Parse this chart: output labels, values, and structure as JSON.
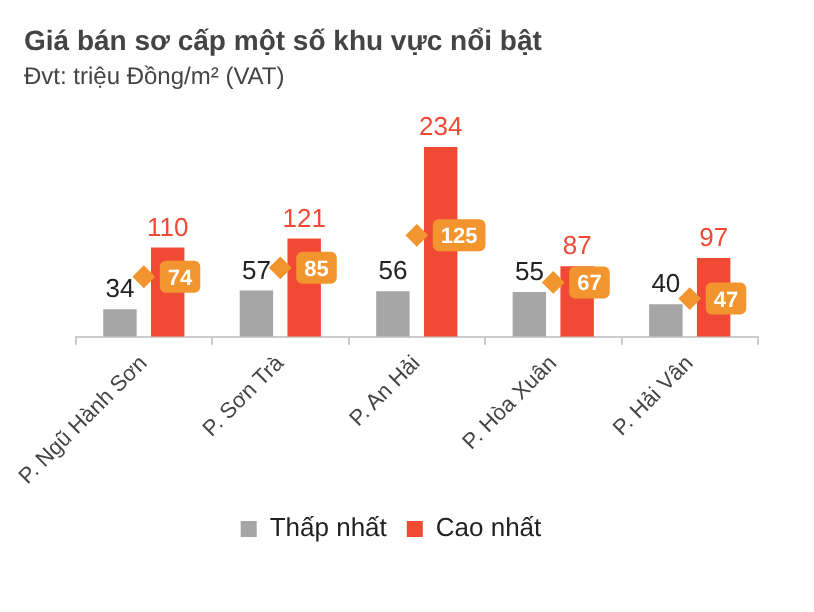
{
  "chart_data": {
    "type": "bar",
    "title": "Giá bán sơ cấp một số khu vực nổi bật",
    "subtitle": "Đvt: triệu Đồng/m² (VAT)",
    "categories": [
      "P. Ngũ Hành Sơn",
      "P. Sơn Trà",
      "P. An Hải",
      "P. Hòa Xuân",
      "P. Hải Vân"
    ],
    "series": [
      {
        "name": "Thấp nhất",
        "color": "#a6a6a6",
        "values": [
          34,
          57,
          56,
          55,
          40
        ]
      },
      {
        "name": "Cao nhất",
        "color": "#f04a35",
        "values": [
          110,
          121,
          234,
          87,
          97
        ]
      },
      {
        "type": "scatter",
        "color": "#f2952e",
        "marker": "diamond",
        "values": [
          74,
          85,
          125,
          67,
          47
        ]
      }
    ],
    "data_labels": true,
    "legend": "bottom",
    "tick_labels": "x"
  }
}
